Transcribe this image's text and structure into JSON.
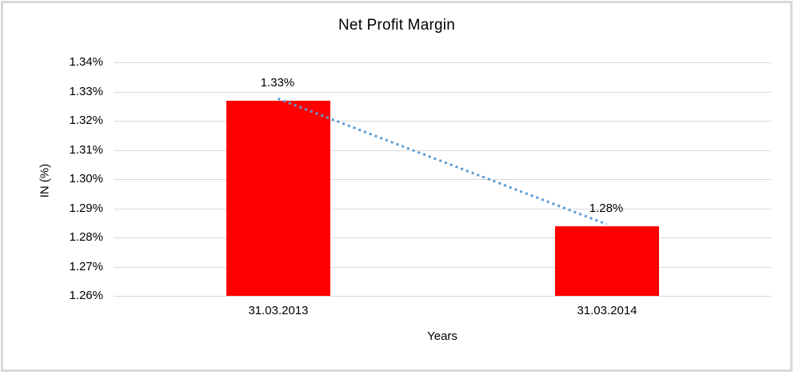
{
  "chart_data": {
    "type": "bar",
    "title": "Net Profit Margin",
    "xlabel": "Years",
    "ylabel": "IN (%)",
    "categories": [
      "31.03.2013",
      "31.03.2014"
    ],
    "values": [
      1.327,
      1.284
    ],
    "data_labels": [
      "1.33%",
      "1.28%"
    ],
    "y_axis": {
      "min": 1.26,
      "max": 1.34,
      "step": 0.01,
      "tick_labels": [
        "1.34%",
        "1.33%",
        "1.32%",
        "1.31%",
        "1.30%",
        "1.29%",
        "1.28%",
        "1.27%",
        "1.26%"
      ]
    },
    "legend": "none",
    "grid": true,
    "trendline": {
      "style": "dotted",
      "connects": "bar tops from 1.33% to 1.28%"
    },
    "colors": {
      "bar": "#ff0000",
      "trendline": "#5b9bd5",
      "gridline": "#d9d9d9",
      "frame_border": "#d9d9d9",
      "text": "#000000",
      "background": "#ffffff"
    }
  }
}
